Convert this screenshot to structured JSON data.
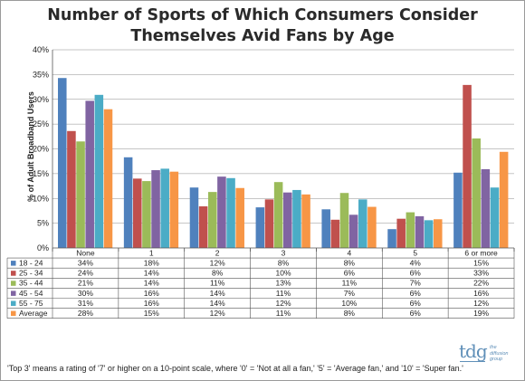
{
  "chart_data": {
    "type": "bar",
    "title_lines": [
      "Number of Sports of Which Consumers Consider",
      "Themselves Avid Fans by Age"
    ],
    "ylabel": "% of Adult Broadband Users",
    "ylim": [
      0,
      40
    ],
    "ytick_step": 5,
    "ytick_labels": [
      "0%",
      "5%",
      "10%",
      "15%",
      "20%",
      "25%",
      "30%",
      "35%",
      "40%"
    ],
    "grid": true,
    "categories": [
      "None",
      "1",
      "2",
      "3",
      "4",
      "5",
      "6 or more"
    ],
    "series": [
      {
        "name": "18 - 24",
        "color": "#4f81bd",
        "values": [
          34.3,
          18.3,
          12.2,
          8.2,
          7.8,
          3.8,
          15.2
        ],
        "labels": [
          "34%",
          "18%",
          "12%",
          "8%",
          "8%",
          "4%",
          "15%"
        ]
      },
      {
        "name": "25 - 34",
        "color": "#c0504d",
        "values": [
          23.6,
          14.0,
          8.4,
          9.8,
          5.7,
          5.9,
          32.9
        ],
        "labels": [
          "24%",
          "14%",
          "8%",
          "10%",
          "6%",
          "6%",
          "33%"
        ]
      },
      {
        "name": "35 - 44",
        "color": "#9bbb59",
        "values": [
          21.5,
          13.5,
          11.3,
          13.3,
          11.1,
          7.2,
          22.1
        ],
        "labels": [
          "21%",
          "14%",
          "11%",
          "13%",
          "11%",
          "7%",
          "22%"
        ]
      },
      {
        "name": "45 - 54",
        "color": "#8064a2",
        "values": [
          29.7,
          15.7,
          14.4,
          11.2,
          6.7,
          6.4,
          15.9
        ],
        "labels": [
          "30%",
          "16%",
          "14%",
          "11%",
          "7%",
          "6%",
          "16%"
        ]
      },
      {
        "name": "55 - 75",
        "color": "#4bacc6",
        "values": [
          30.9,
          16.0,
          14.1,
          11.7,
          9.8,
          5.6,
          12.2
        ],
        "labels": [
          "31%",
          "16%",
          "14%",
          "12%",
          "10%",
          "6%",
          "12%"
        ]
      },
      {
        "name": "Average",
        "color": "#f79646",
        "values": [
          28.0,
          15.4,
          12.1,
          10.8,
          8.3,
          5.8,
          19.4
        ],
        "labels": [
          "28%",
          "15%",
          "12%",
          "11%",
          "8%",
          "6%",
          "19%"
        ]
      }
    ]
  },
  "footnote": "'Top 3' means a rating of '7' or higher on a 10-point scale, where '0' = 'Not at all a fan,' '5' = 'Average fan,' and '10' = 'Super fan.'",
  "logo": {
    "mark": "tdg",
    "sub_lines": [
      "the",
      "diffusion",
      "group"
    ]
  }
}
